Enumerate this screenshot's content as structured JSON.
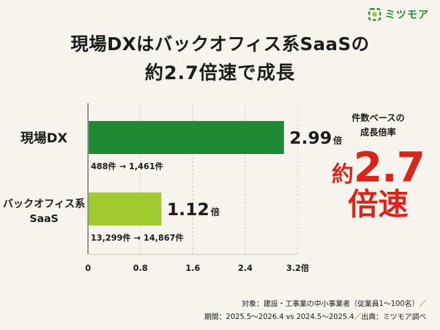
{
  "brand": {
    "name": "ミツモア",
    "color": "#1e8a33"
  },
  "title": {
    "line1": "現場DXはバックオフィス系SaaSの",
    "line2": "約2.7倍速で成長"
  },
  "chart_data": {
    "type": "bar",
    "orientation": "horizontal",
    "categories": [
      "現場DX",
      "バックオフィス系\nSaaS"
    ],
    "category_lines": [
      [
        "現場DX"
      ],
      [
        "バックオフィス系",
        "SaaS"
      ]
    ],
    "values": [
      2.99,
      1.12
    ],
    "value_labels": [
      "2.99",
      "1.12"
    ],
    "value_unit": "倍",
    "counts": [
      "488件 → 1,461件",
      "13,299件 → 14,867件"
    ],
    "colors": [
      "#1e8a33",
      "#9fcb2e"
    ],
    "xlim": [
      0,
      3.2
    ],
    "xticks": [
      "0",
      "0.8",
      "1.6",
      "2.4",
      "3.2倍"
    ],
    "tick_values": [
      0,
      0.8,
      1.6,
      2.4,
      3.2
    ],
    "grid": true
  },
  "side": {
    "caption_line1": "件数ベースの",
    "caption_line2": "成長倍率",
    "prefix": "約",
    "value": "2.7",
    "suffix": "倍速",
    "color": "#d9261c"
  },
  "footnote": {
    "line1": "対象：建設・工事業の中小事業者（従業員1〜100名）／",
    "line2": "期間：2025.5〜2026.4 vs 2024.5〜2025.4／出典：ミツモア調べ"
  }
}
